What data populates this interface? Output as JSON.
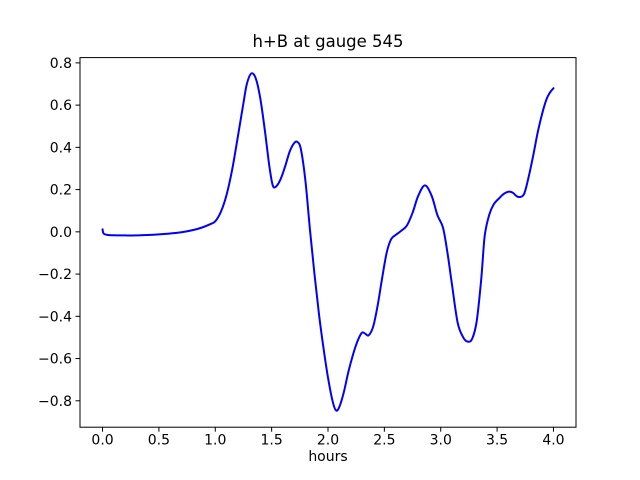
{
  "figure": {
    "background": "#ffffff"
  },
  "chart_data": {
    "type": "line",
    "title": "h+B at gauge 545",
    "xlabel": "hours",
    "ylabel": "",
    "xlim": [
      -0.2,
      4.2
    ],
    "ylim": [
      -0.925,
      0.825
    ],
    "grid": false,
    "legend": "none",
    "xticks": [
      0.0,
      0.5,
      1.0,
      1.5,
      2.0,
      2.5,
      3.0,
      3.5,
      4.0
    ],
    "xtick_labels": [
      "0.0",
      "0.5",
      "1.0",
      "1.5",
      "2.0",
      "2.5",
      "3.0",
      "3.5",
      "4.0"
    ],
    "yticks": [
      -0.8,
      -0.6,
      -0.4,
      -0.2,
      0.0,
      0.2,
      0.4,
      0.6,
      0.8
    ],
    "ytick_labels": [
      "−0.8",
      "−0.6",
      "−0.4",
      "−0.2",
      "0.0",
      "0.2",
      "0.4",
      "0.6",
      "0.8"
    ],
    "series": [
      {
        "name": "h+B",
        "color": "#0000ff",
        "x": [
          0.0,
          0.01,
          0.05,
          0.1,
          0.2,
          0.3,
          0.4,
          0.5,
          0.6,
          0.7,
          0.8,
          0.88,
          0.95,
          1.0,
          1.05,
          1.1,
          1.15,
          1.2,
          1.25,
          1.28,
          1.32,
          1.36,
          1.4,
          1.44,
          1.48,
          1.51,
          1.54,
          1.58,
          1.62,
          1.66,
          1.7,
          1.73,
          1.76,
          1.8,
          1.84,
          1.88,
          1.92,
          1.96,
          2.0,
          2.04,
          2.07,
          2.1,
          2.14,
          2.18,
          2.22,
          2.26,
          2.3,
          2.33,
          2.36,
          2.4,
          2.44,
          2.48,
          2.52,
          2.56,
          2.6,
          2.65,
          2.7,
          2.75,
          2.8,
          2.86,
          2.92,
          2.97,
          3.02,
          3.06,
          3.1,
          3.15,
          3.2,
          3.24,
          3.28,
          3.32,
          3.36,
          3.39,
          3.43,
          3.47,
          3.52,
          3.56,
          3.6,
          3.64,
          3.67,
          3.7,
          3.74,
          3.78,
          3.82,
          3.86,
          3.9,
          3.94,
          3.97,
          4.0
        ],
        "y": [
          0.012,
          -0.008,
          -0.015,
          -0.016,
          -0.017,
          -0.017,
          -0.015,
          -0.012,
          -0.008,
          -0.002,
          0.008,
          0.02,
          0.035,
          0.05,
          0.095,
          0.175,
          0.295,
          0.45,
          0.61,
          0.7,
          0.75,
          0.725,
          0.63,
          0.48,
          0.31,
          0.22,
          0.215,
          0.25,
          0.31,
          0.38,
          0.42,
          0.425,
          0.39,
          0.24,
          0.01,
          -0.2,
          -0.39,
          -0.55,
          -0.69,
          -0.8,
          -0.845,
          -0.83,
          -0.76,
          -0.665,
          -0.585,
          -0.52,
          -0.478,
          -0.482,
          -0.49,
          -0.45,
          -0.35,
          -0.22,
          -0.1,
          -0.035,
          -0.015,
          0.005,
          0.03,
          0.09,
          0.17,
          0.22,
          0.17,
          0.08,
          0.02,
          -0.1,
          -0.25,
          -0.43,
          -0.5,
          -0.52,
          -0.505,
          -0.42,
          -0.22,
          -0.02,
          0.08,
          0.13,
          0.16,
          0.18,
          0.19,
          0.185,
          0.17,
          0.165,
          0.18,
          0.26,
          0.36,
          0.47,
          0.56,
          0.63,
          0.66,
          0.68
        ]
      }
    ]
  }
}
